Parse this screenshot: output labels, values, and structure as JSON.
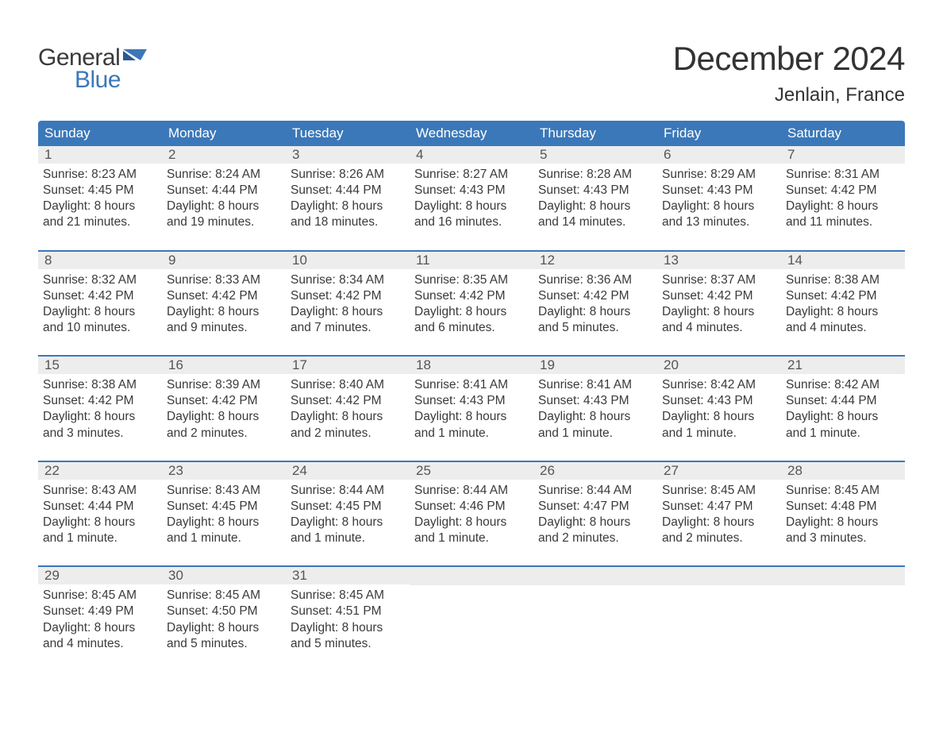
{
  "brand": {
    "name1": "General",
    "name2": "Blue",
    "accent": "#3b78b9"
  },
  "title": "December 2024",
  "location": "Jenlain, France",
  "colors": {
    "headerBg": "#3b78b9",
    "headerText": "#ffffff",
    "dayNumBg": "#ededed",
    "weekBorder": "#3b78b9",
    "bodyText": "#3a3a3a",
    "pageBg": "#ffffff"
  },
  "fonts": {
    "title_pt": 42,
    "location_pt": 24,
    "weekday_pt": 17,
    "daynum_pt": 17,
    "body_pt": 15.5,
    "logo_pt": 30
  },
  "weekdays": [
    "Sunday",
    "Monday",
    "Tuesday",
    "Wednesday",
    "Thursday",
    "Friday",
    "Saturday"
  ],
  "weeks": [
    [
      {
        "n": "1",
        "sunrise": "8:23 AM",
        "sunset": "4:45 PM",
        "d1": "Daylight: 8 hours",
        "d2": "and 21 minutes."
      },
      {
        "n": "2",
        "sunrise": "8:24 AM",
        "sunset": "4:44 PM",
        "d1": "Daylight: 8 hours",
        "d2": "and 19 minutes."
      },
      {
        "n": "3",
        "sunrise": "8:26 AM",
        "sunset": "4:44 PM",
        "d1": "Daylight: 8 hours",
        "d2": "and 18 minutes."
      },
      {
        "n": "4",
        "sunrise": "8:27 AM",
        "sunset": "4:43 PM",
        "d1": "Daylight: 8 hours",
        "d2": "and 16 minutes."
      },
      {
        "n": "5",
        "sunrise": "8:28 AM",
        "sunset": "4:43 PM",
        "d1": "Daylight: 8 hours",
        "d2": "and 14 minutes."
      },
      {
        "n": "6",
        "sunrise": "8:29 AM",
        "sunset": "4:43 PM",
        "d1": "Daylight: 8 hours",
        "d2": "and 13 minutes."
      },
      {
        "n": "7",
        "sunrise": "8:31 AM",
        "sunset": "4:42 PM",
        "d1": "Daylight: 8 hours",
        "d2": "and 11 minutes."
      }
    ],
    [
      {
        "n": "8",
        "sunrise": "8:32 AM",
        "sunset": "4:42 PM",
        "d1": "Daylight: 8 hours",
        "d2": "and 10 minutes."
      },
      {
        "n": "9",
        "sunrise": "8:33 AM",
        "sunset": "4:42 PM",
        "d1": "Daylight: 8 hours",
        "d2": "and 9 minutes."
      },
      {
        "n": "10",
        "sunrise": "8:34 AM",
        "sunset": "4:42 PM",
        "d1": "Daylight: 8 hours",
        "d2": "and 7 minutes."
      },
      {
        "n": "11",
        "sunrise": "8:35 AM",
        "sunset": "4:42 PM",
        "d1": "Daylight: 8 hours",
        "d2": "and 6 minutes."
      },
      {
        "n": "12",
        "sunrise": "8:36 AM",
        "sunset": "4:42 PM",
        "d1": "Daylight: 8 hours",
        "d2": "and 5 minutes."
      },
      {
        "n": "13",
        "sunrise": "8:37 AM",
        "sunset": "4:42 PM",
        "d1": "Daylight: 8 hours",
        "d2": "and 4 minutes."
      },
      {
        "n": "14",
        "sunrise": "8:38 AM",
        "sunset": "4:42 PM",
        "d1": "Daylight: 8 hours",
        "d2": "and 4 minutes."
      }
    ],
    [
      {
        "n": "15",
        "sunrise": "8:38 AM",
        "sunset": "4:42 PM",
        "d1": "Daylight: 8 hours",
        "d2": "and 3 minutes."
      },
      {
        "n": "16",
        "sunrise": "8:39 AM",
        "sunset": "4:42 PM",
        "d1": "Daylight: 8 hours",
        "d2": "and 2 minutes."
      },
      {
        "n": "17",
        "sunrise": "8:40 AM",
        "sunset": "4:42 PM",
        "d1": "Daylight: 8 hours",
        "d2": "and 2 minutes."
      },
      {
        "n": "18",
        "sunrise": "8:41 AM",
        "sunset": "4:43 PM",
        "d1": "Daylight: 8 hours",
        "d2": "and 1 minute."
      },
      {
        "n": "19",
        "sunrise": "8:41 AM",
        "sunset": "4:43 PM",
        "d1": "Daylight: 8 hours",
        "d2": "and 1 minute."
      },
      {
        "n": "20",
        "sunrise": "8:42 AM",
        "sunset": "4:43 PM",
        "d1": "Daylight: 8 hours",
        "d2": "and 1 minute."
      },
      {
        "n": "21",
        "sunrise": "8:42 AM",
        "sunset": "4:44 PM",
        "d1": "Daylight: 8 hours",
        "d2": "and 1 minute."
      }
    ],
    [
      {
        "n": "22",
        "sunrise": "8:43 AM",
        "sunset": "4:44 PM",
        "d1": "Daylight: 8 hours",
        "d2": "and 1 minute."
      },
      {
        "n": "23",
        "sunrise": "8:43 AM",
        "sunset": "4:45 PM",
        "d1": "Daylight: 8 hours",
        "d2": "and 1 minute."
      },
      {
        "n": "24",
        "sunrise": "8:44 AM",
        "sunset": "4:45 PM",
        "d1": "Daylight: 8 hours",
        "d2": "and 1 minute."
      },
      {
        "n": "25",
        "sunrise": "8:44 AM",
        "sunset": "4:46 PM",
        "d1": "Daylight: 8 hours",
        "d2": "and 1 minute."
      },
      {
        "n": "26",
        "sunrise": "8:44 AM",
        "sunset": "4:47 PM",
        "d1": "Daylight: 8 hours",
        "d2": "and 2 minutes."
      },
      {
        "n": "27",
        "sunrise": "8:45 AM",
        "sunset": "4:47 PM",
        "d1": "Daylight: 8 hours",
        "d2": "and 2 minutes."
      },
      {
        "n": "28",
        "sunrise": "8:45 AM",
        "sunset": "4:48 PM",
        "d1": "Daylight: 8 hours",
        "d2": "and 3 minutes."
      }
    ],
    [
      {
        "n": "29",
        "sunrise": "8:45 AM",
        "sunset": "4:49 PM",
        "d1": "Daylight: 8 hours",
        "d2": "and 4 minutes."
      },
      {
        "n": "30",
        "sunrise": "8:45 AM",
        "sunset": "4:50 PM",
        "d1": "Daylight: 8 hours",
        "d2": "and 5 minutes."
      },
      {
        "n": "31",
        "sunrise": "8:45 AM",
        "sunset": "4:51 PM",
        "d1": "Daylight: 8 hours",
        "d2": "and 5 minutes."
      },
      null,
      null,
      null,
      null
    ]
  ],
  "labels": {
    "sunrisePrefix": "Sunrise: ",
    "sunsetPrefix": "Sunset: "
  }
}
